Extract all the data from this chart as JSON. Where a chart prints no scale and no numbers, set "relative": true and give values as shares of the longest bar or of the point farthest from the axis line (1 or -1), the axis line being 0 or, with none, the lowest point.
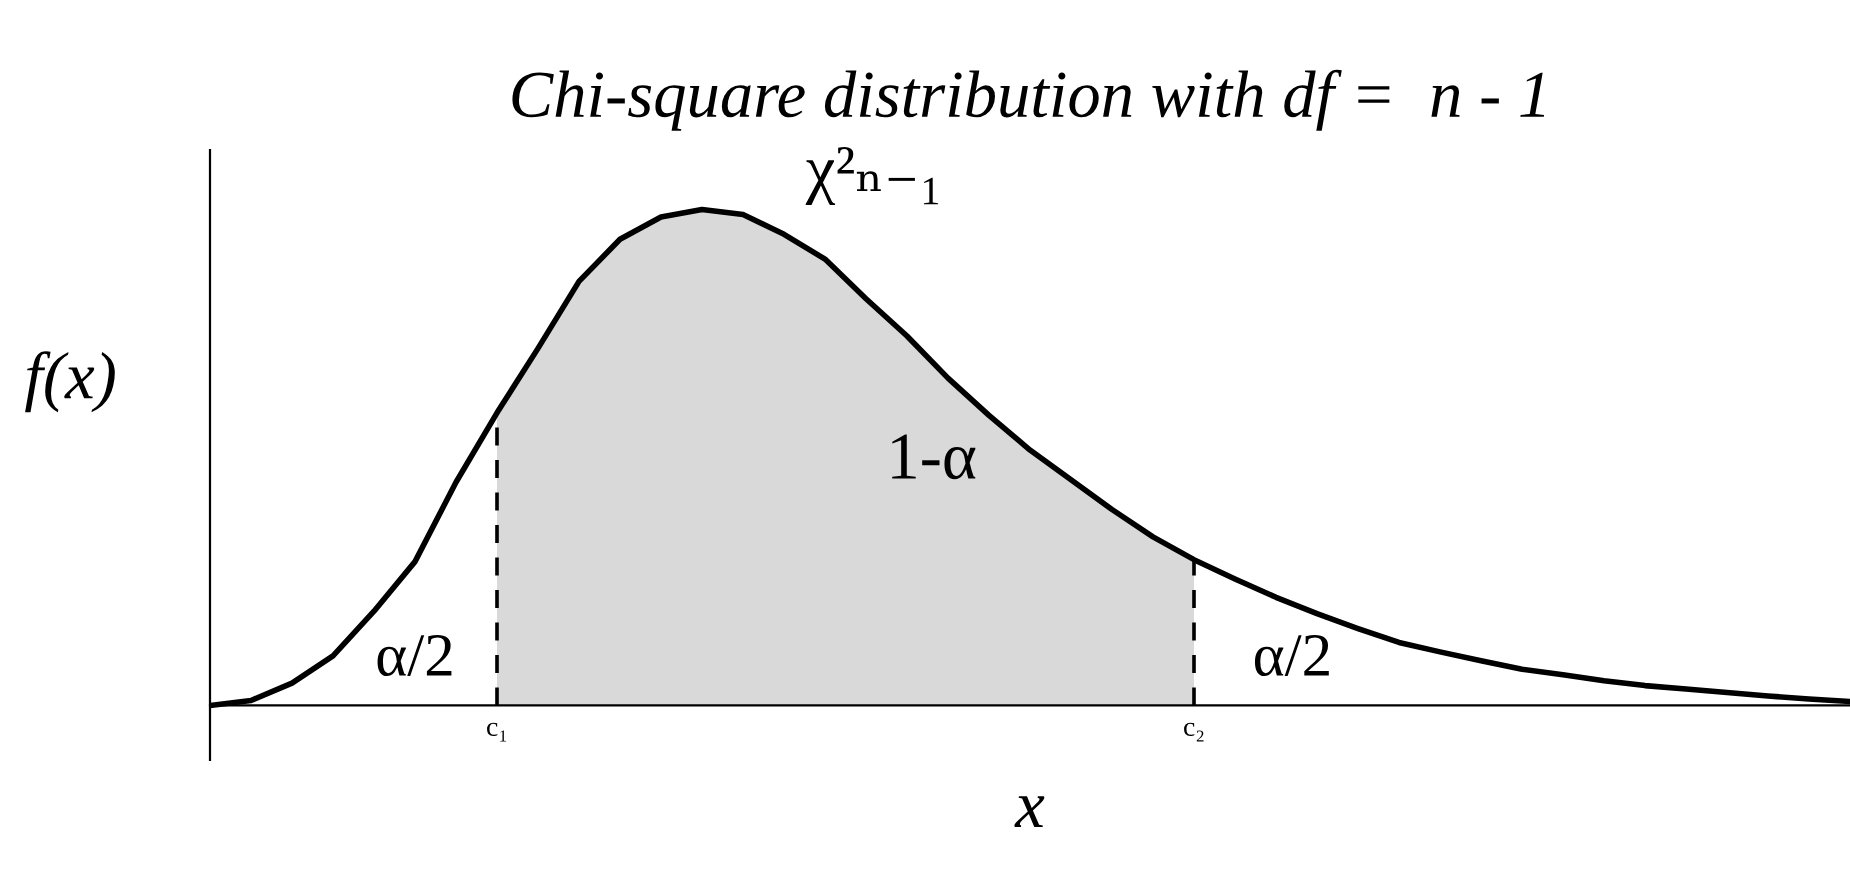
{
  "chart_data": {
    "type": "line",
    "relative": true,
    "title": "Chi-square distribution with df =  n - 1",
    "xlabel": "x",
    "ylabel": "f(x)",
    "categories": [
      null,
      null,
      null,
      null,
      null,
      null,
      null,
      "c₁",
      null,
      null,
      null,
      null,
      null,
      null,
      null,
      null,
      null,
      null,
      null,
      null,
      null,
      null,
      null,
      null,
      "c₂",
      null,
      null,
      null,
      null,
      null,
      null,
      null,
      null,
      null,
      null,
      null,
      null,
      null,
      null,
      null,
      null
    ],
    "series": [
      {
        "type": "area",
        "color": "#d9d9d9",
        "values": [
          null,
          null,
          null,
          null,
          null,
          null,
          null,
          0.59,
          0.72,
          0.855,
          0.94,
          0.985,
          1.0,
          0.99,
          0.95,
          0.9,
          0.82,
          0.745,
          0.66,
          0.585,
          0.515,
          0.455,
          0.395,
          0.34,
          0.294,
          null,
          null,
          null,
          null,
          null,
          null,
          null,
          null,
          null,
          null,
          null,
          null,
          null,
          null,
          null,
          null
        ]
      },
      {
        "color": "#000000",
        "values": [
          0,
          0.01,
          0.045,
          0.1,
          0.19,
          0.29,
          0.45,
          0.59,
          0.72,
          0.855,
          0.94,
          0.985,
          1.0,
          0.99,
          0.95,
          0.9,
          0.82,
          0.745,
          0.66,
          0.585,
          0.515,
          0.455,
          0.395,
          0.34,
          0.294,
          0.255,
          0.218,
          0.185,
          0.155,
          0.127,
          0.108,
          0.09,
          0.073,
          0.062,
          0.05,
          0.04,
          0.033,
          0.026,
          0.019,
          0.013,
          0.008
        ]
      }
    ],
    "ref_lines": [
      {
        "axis": "x",
        "value": "c₁",
        "color": "#000000",
        "line_style": "dashed"
      },
      {
        "axis": "x",
        "value": "c₂",
        "color": "#000000",
        "line_style": "dashed"
      }
    ],
    "annotations": [
      "χ²ₙ₋₁",
      "1-α",
      "α/2",
      "α/2"
    ],
    "grid": false,
    "legend": false
  }
}
